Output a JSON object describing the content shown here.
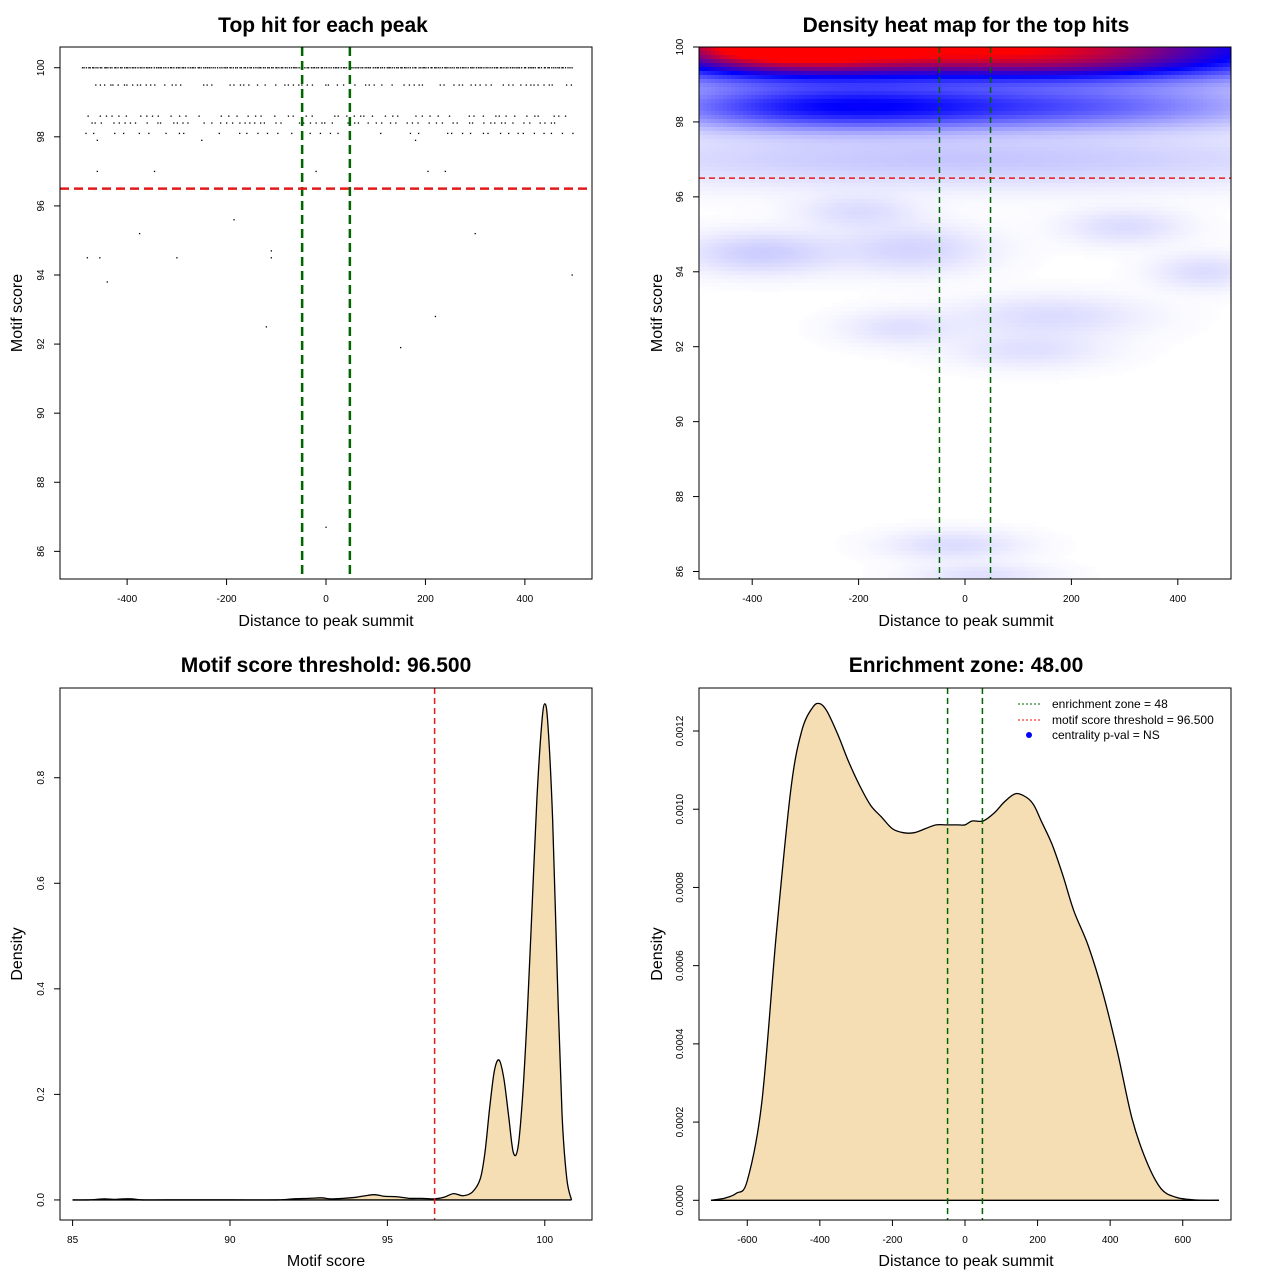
{
  "chart_data": [
    {
      "type": "scatter",
      "title": "Top hit for each peak",
      "xlabel": "Distance to peak summit",
      "ylabel": "Motif score",
      "xlim": [
        -535,
        535
      ],
      "ylim": [
        85.2,
        100.6
      ],
      "xticks": [
        -400,
        -200,
        0,
        200,
        400
      ],
      "yticks": [
        86,
        88,
        90,
        92,
        94,
        96,
        98,
        100
      ],
      "vlines": [
        -48,
        48
      ],
      "hline": 96.5,
      "rows": [
        {
          "y": 100,
          "xmin": -490,
          "xmax": 495,
          "step": 4
        },
        {
          "y": 99.5,
          "xmin": -480,
          "xmax": 495,
          "step": 9
        },
        {
          "y": 98.6,
          "xmin": -480,
          "xmax": 490,
          "step": 13
        },
        {
          "y": 98.4,
          "xmin": -495,
          "xmax": 470,
          "step": 11
        },
        {
          "y": 98.1,
          "xmin": -480,
          "xmax": 495,
          "step": 18
        }
      ],
      "points": [
        {
          "x": -460,
          "y": 97.9
        },
        {
          "x": -250,
          "y": 97.9
        },
        {
          "x": 180,
          "y": 97.9
        },
        {
          "x": -460,
          "y": 97.0
        },
        {
          "x": -345,
          "y": 97.0
        },
        {
          "x": -20,
          "y": 97.0
        },
        {
          "x": 205,
          "y": 97.0
        },
        {
          "x": 240,
          "y": 97.0
        },
        {
          "x": -185,
          "y": 95.6
        },
        {
          "x": -375,
          "y": 95.2
        },
        {
          "x": 300,
          "y": 95.2
        },
        {
          "x": -480,
          "y": 94.5
        },
        {
          "x": -455,
          "y": 94.5
        },
        {
          "x": -300,
          "y": 94.5
        },
        {
          "x": -110,
          "y": 94.5
        },
        {
          "x": -110,
          "y": 94.7
        },
        {
          "x": -440,
          "y": 93.8
        },
        {
          "x": 495,
          "y": 94.0
        },
        {
          "x": 220,
          "y": 92.8
        },
        {
          "x": -120,
          "y": 92.5
        },
        {
          "x": 150,
          "y": 91.9
        },
        {
          "x": 0,
          "y": 86.7
        }
      ]
    },
    {
      "type": "heatmap",
      "title": "Density heat map for the top hits",
      "xlabel": "Distance to peak summit",
      "ylabel": "Motif score",
      "xlim": [
        -500,
        500
      ],
      "ylim": [
        85.8,
        100
      ],
      "xticks": [
        -400,
        -200,
        0,
        200,
        400
      ],
      "yticks": [
        86,
        88,
        90,
        92,
        94,
        96,
        98,
        100
      ],
      "vlines": [
        -48,
        48
      ],
      "hline": 96.5,
      "colors": {
        "low": "#ffffff",
        "mid": "#0000ff",
        "high": "#ff0000"
      },
      "blobs": [
        {
          "x": -350,
          "y": 100,
          "sx": 140,
          "sy": 0.35,
          "w": 2.6
        },
        {
          "x": -80,
          "y": 100,
          "sx": 220,
          "sy": 0.4,
          "w": 1.2
        },
        {
          "x": 200,
          "y": 100,
          "sx": 260,
          "sy": 0.45,
          "w": 1.2
        },
        {
          "x": 0,
          "y": 100,
          "sx": 520,
          "sy": 0.55,
          "w": 0.7
        },
        {
          "x": -300,
          "y": 99.4,
          "sx": 200,
          "sy": 0.3,
          "w": 0.5
        },
        {
          "x": 200,
          "y": 99.5,
          "sx": 200,
          "sy": 0.3,
          "w": 0.5
        },
        {
          "x": -250,
          "y": 98.4,
          "sx": 200,
          "sy": 0.38,
          "w": 0.85
        },
        {
          "x": 150,
          "y": 98.4,
          "sx": 260,
          "sy": 0.38,
          "w": 0.55
        },
        {
          "x": 0,
          "y": 97.0,
          "sx": 450,
          "sy": 0.45,
          "w": 0.12
        },
        {
          "x": -380,
          "y": 94.5,
          "sx": 90,
          "sy": 0.35,
          "w": 0.1
        },
        {
          "x": -100,
          "y": 94.6,
          "sx": 90,
          "sy": 0.4,
          "w": 0.08
        },
        {
          "x": 300,
          "y": 95.2,
          "sx": 70,
          "sy": 0.3,
          "w": 0.06
        },
        {
          "x": -200,
          "y": 95.6,
          "sx": 70,
          "sy": 0.3,
          "w": 0.06
        },
        {
          "x": 450,
          "y": 94.0,
          "sx": 60,
          "sy": 0.3,
          "w": 0.06
        },
        {
          "x": -120,
          "y": 92.5,
          "sx": 70,
          "sy": 0.3,
          "w": 0.05
        },
        {
          "x": 160,
          "y": 92.8,
          "sx": 110,
          "sy": 0.35,
          "w": 0.06
        },
        {
          "x": 120,
          "y": 91.9,
          "sx": 90,
          "sy": 0.3,
          "w": 0.05
        },
        {
          "x": -20,
          "y": 86.7,
          "sx": 80,
          "sy": 0.25,
          "w": 0.06
        },
        {
          "x": 30,
          "y": 85.9,
          "sx": 80,
          "sy": 0.2,
          "w": 0.05
        }
      ]
    },
    {
      "type": "area",
      "title": "Motif score threshold: 96.500",
      "xlabel": "Motif score",
      "ylabel": "Density",
      "xlim": [
        84.6,
        101.5
      ],
      "ylim": [
        -0.038,
        0.97
      ],
      "xticks": [
        85,
        90,
        95,
        100
      ],
      "yticks": [
        0.0,
        0.2,
        0.4,
        0.6,
        0.8
      ],
      "vline": 96.5,
      "fill": "#f5deb3",
      "x": [
        85.0,
        85.5,
        86.0,
        86.3,
        86.6,
        86.9,
        87.2,
        88.0,
        90.0,
        91.5,
        92.0,
        92.5,
        92.9,
        93.2,
        93.6,
        94.0,
        94.3,
        94.6,
        94.9,
        95.3,
        95.7,
        96.1,
        96.5,
        96.8,
        97.1,
        97.4,
        97.7,
        97.95,
        98.1,
        98.25,
        98.4,
        98.55,
        98.7,
        98.85,
        99.0,
        99.15,
        99.3,
        99.45,
        99.6,
        99.75,
        99.9,
        100.0,
        100.1,
        100.25,
        100.4,
        100.55,
        100.7,
        100.85
      ],
      "y": [
        0.0,
        0.0,
        0.002,
        0.001,
        0.002,
        0.002,
        0.0,
        0.0,
        0.0,
        0.0,
        0.002,
        0.003,
        0.004,
        0.002,
        0.003,
        0.005,
        0.008,
        0.01,
        0.007,
        0.006,
        0.003,
        0.003,
        0.002,
        0.005,
        0.012,
        0.008,
        0.015,
        0.04,
        0.09,
        0.175,
        0.245,
        0.265,
        0.23,
        0.16,
        0.09,
        0.1,
        0.2,
        0.36,
        0.56,
        0.76,
        0.9,
        0.94,
        0.9,
        0.72,
        0.42,
        0.16,
        0.04,
        0.0
      ]
    },
    {
      "type": "area",
      "title": "Enrichment zone: 48.00",
      "xlabel": "Distance to peak summit",
      "ylabel": "Density",
      "xlim": [
        -733,
        733
      ],
      "ylim": [
        -5.04e-05,
        0.00131
      ],
      "xticks": [
        -600,
        -400,
        -200,
        0,
        200,
        400,
        600
      ],
      "yticks": [
        0.0,
        0.0002,
        0.0004,
        0.0006,
        0.0008,
        0.001,
        0.0012
      ],
      "vlines": [
        -48,
        48
      ],
      "fill": "#f5deb3",
      "x": [
        -700,
        -660,
        -630,
        -600,
        -560,
        -520,
        -480,
        -450,
        -420,
        -400,
        -380,
        -350,
        -320,
        -290,
        -260,
        -230,
        -200,
        -170,
        -140,
        -110,
        -80,
        -50,
        -20,
        0,
        20,
        50,
        80,
        110,
        140,
        170,
        190,
        210,
        240,
        270,
        300,
        340,
        380,
        420,
        460,
        500,
        540,
        580,
        620,
        660,
        700
      ],
      "y": [
        0.0,
        6e-06,
        1.8e-05,
        5e-05,
        0.00025,
        0.00068,
        0.00105,
        0.0012,
        0.00126,
        0.00127,
        0.00125,
        0.00119,
        0.00112,
        0.00106,
        0.00101,
        0.00098,
        0.00095,
        0.00094,
        0.00094,
        0.00095,
        0.00096,
        0.00096,
        0.00096,
        0.00096,
        0.00097,
        0.00097,
        0.00099,
        0.00102,
        0.00104,
        0.00103,
        0.00101,
        0.00097,
        0.00091,
        0.00083,
        0.00074,
        0.00065,
        0.00053,
        0.00038,
        0.00021,
        0.0001,
        3e-05,
        8e-06,
        2e-06,
        0.0,
        0.0
      ],
      "legend": {
        "placement": "top-right",
        "entries": [
          {
            "label": "enrichment zone = 48",
            "color": "#006400",
            "symbol": "dotted-line"
          },
          {
            "label": "motif score threshold = 96.500",
            "color": "#ff0000",
            "symbol": "dotted-line"
          },
          {
            "label": "centrality p-val = NS",
            "color": "#0000ff",
            "symbol": "dot"
          }
        ]
      }
    }
  ]
}
